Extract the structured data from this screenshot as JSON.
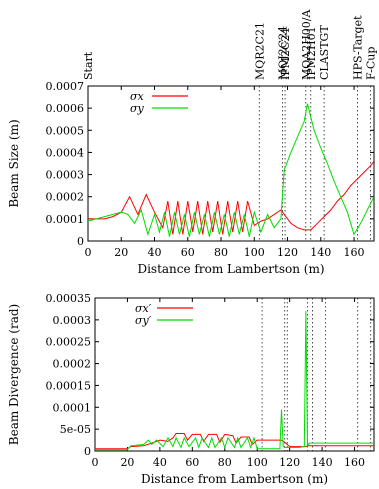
{
  "chart_data": [
    {
      "type": "line",
      "xlabel": "Distance from Lambertson (m)",
      "ylabel": "Beam Size (m)",
      "xlim": [
        0,
        172
      ],
      "ylim": [
        0,
        0.0007
      ],
      "xticks": [
        "0",
        "20",
        "40",
        "60",
        "80",
        "100",
        "120",
        "140",
        "160"
      ],
      "yticks": [
        "0",
        "0.0001",
        "0.0002",
        "0.0003",
        "0.0004",
        "0.0005",
        "0.0006",
        "0.0007"
      ],
      "legend_placement": "top-left",
      "markers": [
        {
          "label": "Start",
          "x": 0
        },
        {
          "label": "MQR2C21",
          "x": 103
        },
        {
          "label": "MQJ2C24",
          "x": 117
        },
        {
          "label": "IPM2C24",
          "x": 118.5
        },
        {
          "label": "MQA2H00/A",
          "x": 131
        },
        {
          "label": "IPM2H01",
          "x": 134
        },
        {
          "label": "CLASTGT",
          "x": 142
        },
        {
          "label": "HPS-Target",
          "x": 162
        },
        {
          "label": "F-Cup",
          "x": 170
        }
      ],
      "series": [
        {
          "name": "σx",
          "color": "#ff0000",
          "x": [
            0,
            5,
            10,
            15,
            20,
            25,
            30,
            35,
            40,
            45,
            48,
            51,
            54,
            57,
            60,
            63,
            66,
            69,
            72,
            75,
            78,
            81,
            84,
            87,
            90,
            93,
            96,
            100,
            104,
            108,
            112,
            116,
            118,
            122,
            126,
            130,
            134,
            138,
            142,
            146,
            150,
            154,
            158,
            162,
            166,
            170,
            172
          ],
          "values": [
            0.0001,
            0.0001,
            0.0001,
            0.00011,
            0.00013,
            0.0002,
            0.00012,
            0.00021,
            0.00013,
            6e-05,
            0.00018,
            3e-05,
            0.00018,
            3e-05,
            0.00018,
            4e-05,
            0.00018,
            3e-05,
            0.00018,
            4e-05,
            0.00018,
            3e-05,
            0.00018,
            4e-05,
            0.00018,
            4e-05,
            0.00018,
            7e-05,
            9e-05,
            0.0001,
            0.00012,
            0.00014,
            0.00012,
            8e-05,
            6e-05,
            5e-05,
            5e-05,
            8e-05,
            0.00011,
            0.00014,
            0.00018,
            0.00021,
            0.00025,
            0.00028,
            0.00031,
            0.00034,
            0.00036
          ]
        },
        {
          "name": "σy",
          "color": "#00dd00",
          "x": [
            0,
            5,
            10,
            15,
            20,
            24,
            28,
            32,
            36,
            40,
            43,
            46,
            49,
            52,
            55,
            58,
            61,
            64,
            67,
            70,
            73,
            76,
            79,
            82,
            85,
            88,
            91,
            94,
            97,
            100,
            104,
            108,
            112,
            116,
            118,
            122,
            126,
            130,
            132,
            136,
            140,
            144,
            148,
            152,
            156,
            160,
            164,
            168,
            172
          ],
          "values": [
            9e-05,
            0.0001,
            0.00011,
            0.00012,
            0.00013,
            0.00012,
            8e-05,
            0.00014,
            3e-05,
            0.00012,
            4e-05,
            0.00013,
            2e-05,
            0.00013,
            3e-05,
            0.00012,
            2e-05,
            0.00013,
            3e-05,
            0.00012,
            2e-05,
            0.00013,
            3e-05,
            0.00012,
            2e-05,
            0.00013,
            3e-05,
            0.00012,
            2e-05,
            0.00013,
            4e-05,
            0.00012,
            6e-05,
            0.0001,
            0.00032,
            0.0004,
            0.00047,
            0.00054,
            0.00062,
            0.0005,
            0.00042,
            0.00035,
            0.00027,
            0.0002,
            0.00013,
            3e-05,
            8e-05,
            0.00014,
            0.0002
          ]
        }
      ]
    },
    {
      "type": "line",
      "xlabel": "Distance from Lambertson (m)",
      "ylabel": "Beam Divergence (rad)",
      "xlim": [
        0,
        172
      ],
      "ylim": [
        0,
        0.00035
      ],
      "xticks": [
        "0",
        "20",
        "40",
        "60",
        "80",
        "100",
        "120",
        "140",
        "160"
      ],
      "yticks": [
        "0",
        "5e-05",
        "0.0001",
        "0.00015",
        "0.0002",
        "0.00025",
        "0.0003",
        "0.00035"
      ],
      "legend_placement": "top-left",
      "series": [
        {
          "name": "σx′",
          "color": "#ff0000",
          "x": [
            0,
            20,
            22,
            30,
            35,
            40,
            45,
            48,
            50,
            55,
            57,
            60,
            65,
            67,
            70,
            75,
            77,
            80,
            85,
            87,
            90,
            95,
            97,
            100,
            105,
            110,
            115,
            117,
            120,
            125,
            130,
            131,
            135,
            140,
            150,
            160,
            172
          ],
          "values": [
            5e-06,
            5e-06,
            1e-05,
            1.2e-05,
            1.8e-05,
            2.5e-05,
            2.2e-05,
            3e-05,
            4e-05,
            4e-05,
            2.5e-05,
            3.8e-05,
            3.8e-05,
            2.2e-05,
            3.8e-05,
            3.8e-05,
            2e-05,
            3.8e-05,
            3.5e-05,
            1.8e-05,
            3.2e-05,
            3.2e-05,
            1.5e-05,
            2.5e-05,
            2.5e-05,
            2.5e-05,
            2.5e-05,
            2e-05,
            1e-05,
            1e-05,
            1e-05,
            1.2e-05,
            1.2e-05,
            1.2e-05,
            1.2e-05,
            1.2e-05,
            1.2e-05
          ]
        },
        {
          "name": "σy′",
          "color": "#00dd00",
          "x": [
            0,
            20,
            22,
            30,
            33,
            35,
            38,
            42,
            45,
            48,
            50,
            53,
            55,
            58,
            62,
            64,
            66,
            70,
            72,
            74,
            78,
            80,
            82,
            86,
            88,
            90,
            94,
            96,
            98,
            100,
            108,
            114,
            115,
            116,
            117,
            118,
            122,
            126,
            129,
            130,
            131,
            132,
            136,
            140,
            150,
            160,
            172
          ],
          "values": [
            3e-06,
            3e-06,
            1.2e-05,
            1.5e-05,
            2.5e-05,
            1.5e-05,
            2.5e-05,
            1e-05,
            3e-05,
            1e-05,
            3e-05,
            8e-06,
            3e-05,
            1e-05,
            3e-05,
            8e-06,
            3e-05,
            8e-06,
            3e-05,
            8e-06,
            3e-05,
            8e-06,
            3e-05,
            8e-06,
            3e-05,
            8e-06,
            3e-05,
            8e-06,
            3e-05,
            5e-06,
            5e-06,
            5e-06,
            9.5e-05,
            1e-05,
            8e-06,
            8e-06,
            8e-06,
            8e-06,
            1e-05,
            0.00032,
            1e-05,
            1.8e-05,
            1.8e-05,
            1.8e-05,
            1.8e-05,
            1.8e-05,
            1.8e-05
          ]
        }
      ]
    }
  ]
}
